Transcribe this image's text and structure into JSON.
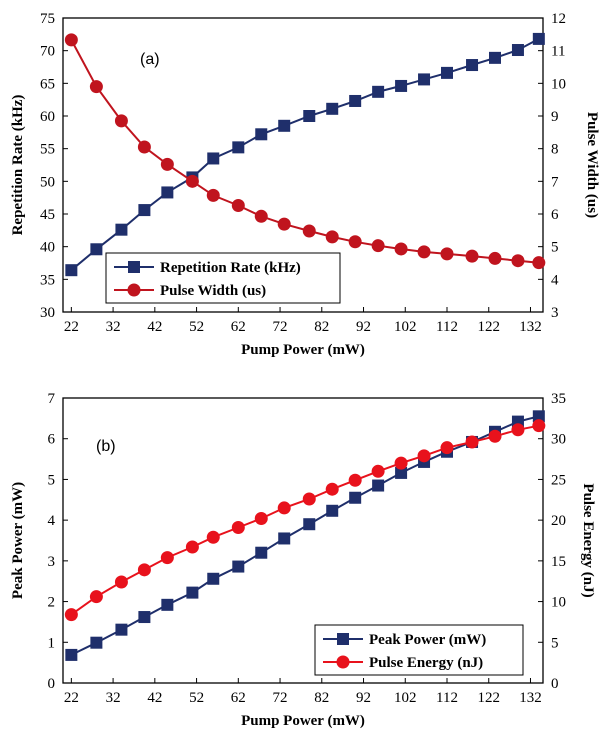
{
  "chart_data": [
    {
      "type": "line",
      "panel_label": "(a)",
      "xlabel": "Pump Power (mW)",
      "ylabel": "Repetition Rate (kHz)",
      "y2label": "Pulse Width (us)",
      "xlim": [
        20,
        135
      ],
      "xticks": [
        22,
        32,
        42,
        52,
        62,
        72,
        82,
        92,
        102,
        112,
        122,
        132
      ],
      "ylim": [
        30,
        75
      ],
      "yticks": [
        30,
        35,
        40,
        45,
        50,
        55,
        60,
        65,
        70,
        75
      ],
      "y2lim": [
        3,
        12
      ],
      "y2ticks": [
        3,
        4,
        5,
        6,
        7,
        8,
        9,
        10,
        11,
        12
      ],
      "legend_position": "bottom-center",
      "x": [
        22,
        28,
        34,
        39.5,
        45,
        51,
        56,
        62,
        67.5,
        73,
        79,
        84.5,
        90,
        95.5,
        101,
        106.5,
        112,
        118,
        123.5,
        129,
        134
      ],
      "series": [
        {
          "name": "Repetition Rate (kHz)",
          "axis": "left",
          "marker": "square",
          "color": "#1f2f6b",
          "values": [
            36.4,
            39.6,
            42.6,
            45.6,
            48.3,
            50.6,
            53.5,
            55.2,
            57.2,
            58.5,
            60.0,
            61.1,
            62.3,
            63.7,
            64.6,
            65.6,
            66.6,
            67.8,
            68.9,
            70.1,
            71.8
          ]
        },
        {
          "name": "Pulse Width (us)",
          "axis": "right",
          "marker": "circle",
          "color": "#c0141e",
          "values": [
            11.33,
            9.9,
            8.85,
            8.05,
            7.52,
            7.0,
            6.57,
            6.26,
            5.93,
            5.69,
            5.48,
            5.3,
            5.15,
            5.03,
            4.93,
            4.84,
            4.78,
            4.71,
            4.64,
            4.57,
            4.51
          ]
        }
      ]
    },
    {
      "type": "line",
      "panel_label": "(b)",
      "xlabel": "Pump Power (mW)",
      "ylabel": "Peak Power (mW)",
      "y2label": "Pulse Energy (nJ)",
      "xlim": [
        20,
        135
      ],
      "xticks": [
        22,
        32,
        42,
        52,
        62,
        72,
        82,
        92,
        102,
        112,
        122,
        132
      ],
      "ylim": [
        0,
        7
      ],
      "yticks": [
        0,
        1,
        2,
        3,
        4,
        5,
        6,
        7
      ],
      "y2lim": [
        0,
        35
      ],
      "y2ticks": [
        0,
        5,
        10,
        15,
        20,
        25,
        30,
        35
      ],
      "legend_position": "bottom-right",
      "x": [
        22,
        28,
        34,
        39.5,
        45,
        51,
        56,
        62,
        67.5,
        73,
        79,
        84.5,
        90,
        95.5,
        101,
        106.5,
        112,
        118,
        123.5,
        129,
        134
      ],
      "series": [
        {
          "name": "Peak Power (mW)",
          "axis": "left",
          "marker": "square",
          "color": "#1f2f6b",
          "values": [
            0.69,
            0.99,
            1.31,
            1.62,
            1.92,
            2.22,
            2.56,
            2.86,
            3.2,
            3.55,
            3.9,
            4.23,
            4.55,
            4.85,
            5.16,
            5.43,
            5.68,
            5.92,
            6.17,
            6.42,
            6.55
          ]
        },
        {
          "name": "Pulse Energy (nJ)",
          "axis": "right",
          "marker": "circle",
          "color": "#e8121c",
          "values": [
            8.4,
            10.6,
            12.4,
            13.9,
            15.4,
            16.7,
            17.9,
            19.1,
            20.2,
            21.5,
            22.6,
            23.8,
            24.9,
            26.0,
            27.0,
            27.9,
            28.9,
            29.6,
            30.3,
            31.1,
            31.6
          ]
        }
      ]
    }
  ]
}
